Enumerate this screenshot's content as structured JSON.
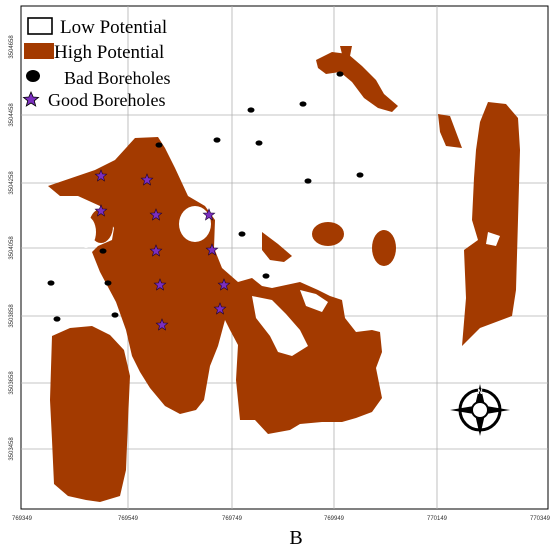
{
  "legend": {
    "items": [
      {
        "label": "Low Potential",
        "symbol": "open-box-icon",
        "color": "#ffffff"
      },
      {
        "label": "High Potential",
        "symbol": "filled-box-icon",
        "color": "#a33a00"
      },
      {
        "label": "Bad Boreholes",
        "symbol": "black-dot-icon",
        "color": "#000000"
      },
      {
        "label": "Good Boreholes",
        "symbol": "star-icon",
        "color": "#7b2fbf"
      }
    ]
  },
  "axes": {
    "x_ticks": [
      "769349",
      "769549",
      "769749",
      "769949",
      "770149",
      "770349"
    ],
    "y_ticks": [
      "3504658",
      "3504458",
      "3504258",
      "3504058",
      "3503858",
      "3503658",
      "3503458"
    ]
  },
  "north_arrow": {
    "label": "N",
    "icon": "north-arrow-icon"
  },
  "panel_label": "B",
  "colors": {
    "high": "#a33a00",
    "low": "#ffffff",
    "grid": "#b0b0b0",
    "star": "#7b2fbf"
  },
  "boreholes": {
    "good": [
      [
        101,
        176
      ],
      [
        147,
        180
      ],
      [
        101,
        211
      ],
      [
        156,
        215
      ],
      [
        209,
        215
      ],
      [
        156,
        251
      ],
      [
        212,
        250
      ],
      [
        160,
        285
      ],
      [
        224,
        285
      ],
      [
        220,
        309
      ],
      [
        162,
        325
      ]
    ],
    "bad": [
      [
        340,
        74
      ],
      [
        251,
        110
      ],
      [
        303,
        104
      ],
      [
        159,
        145
      ],
      [
        217,
        140
      ],
      [
        259,
        143
      ],
      [
        308,
        181
      ],
      [
        360,
        175
      ],
      [
        242,
        234
      ],
      [
        103,
        251
      ],
      [
        51,
        283
      ],
      [
        108,
        283
      ],
      [
        266,
        276
      ],
      [
        57,
        319
      ],
      [
        115,
        315
      ]
    ]
  }
}
